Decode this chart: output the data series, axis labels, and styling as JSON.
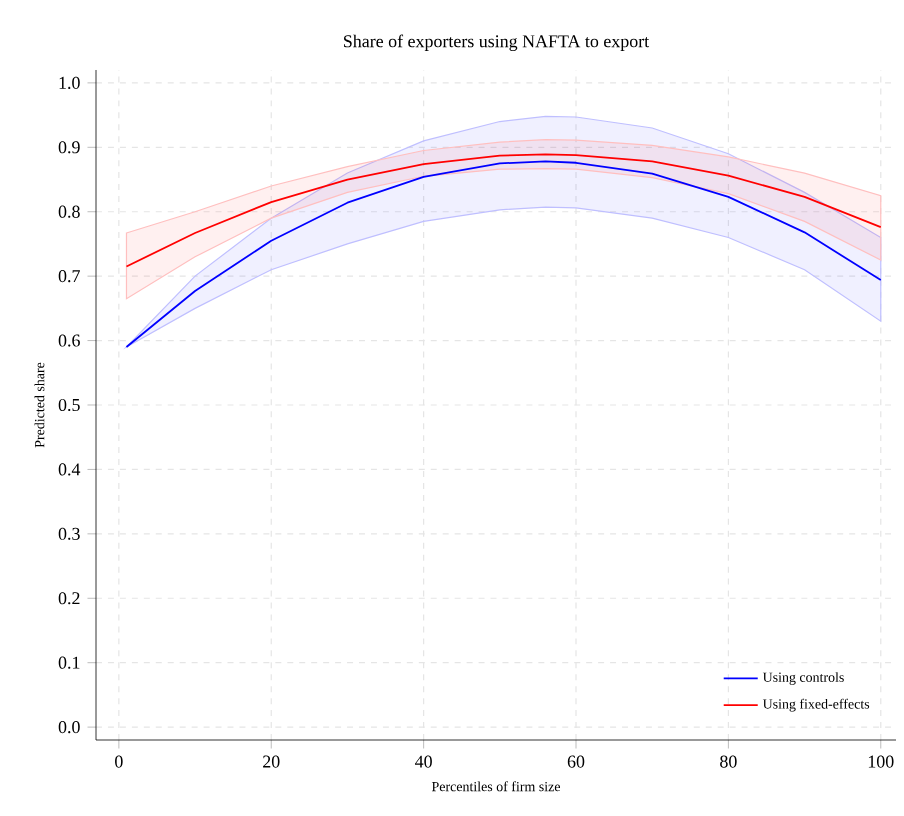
{
  "chart_data": {
    "type": "line",
    "title": "Share of exporters using NAFTA to export",
    "xlabel": "Percentiles of firm size",
    "ylabel": "Predicted share",
    "xlim": [
      -3,
      102
    ],
    "xticks": [
      0,
      20,
      40,
      60,
      80,
      100
    ],
    "ylim": [
      -0.02,
      1.02
    ],
    "yticks": [
      {
        "value": 0,
        "label": "0.0"
      },
      {
        "value": 0.1,
        "label": "0.1"
      },
      {
        "value": 0.2,
        "label": "0.2"
      },
      {
        "value": 0.3,
        "label": "0.3"
      },
      {
        "value": 0.4,
        "label": "0.4"
      },
      {
        "value": 0.5,
        "label": "0.5"
      },
      {
        "value": 0.6,
        "label": "0.6"
      },
      {
        "value": 0.7,
        "label": "0.7"
      },
      {
        "value": 0.8,
        "label": "0.8"
      },
      {
        "value": 0.9,
        "label": "0.9"
      },
      {
        "value": 1.0,
        "label": "1.0"
      }
    ],
    "grid": true,
    "legend": "bottom right",
    "marker": "none",
    "line_style": "solid",
    "x": [
      1,
      10,
      20,
      30,
      40,
      50,
      56,
      60,
      70,
      80,
      90,
      100
    ],
    "series": [
      {
        "name": "Using controls",
        "color": "#0000ff",
        "values": [
          0.59,
          0.677,
          0.755,
          0.814,
          0.854,
          0.875,
          0.878,
          0.876,
          0.859,
          0.823,
          0.768,
          0.694
        ],
        "lower": [
          0.59,
          0.65,
          0.71,
          0.75,
          0.785,
          0.803,
          0.807,
          0.806,
          0.79,
          0.76,
          0.71,
          0.63
        ],
        "upper": [
          0.59,
          0.7,
          0.79,
          0.86,
          0.91,
          0.94,
          0.948,
          0.947,
          0.93,
          0.89,
          0.83,
          0.76
        ]
      },
      {
        "name": "Using fixed-effects",
        "color": "#ff0000",
        "values": [
          0.715,
          0.767,
          0.815,
          0.85,
          0.874,
          0.887,
          0.889,
          0.888,
          0.878,
          0.856,
          0.823,
          0.776
        ],
        "lower": [
          0.665,
          0.73,
          0.79,
          0.83,
          0.855,
          0.866,
          0.867,
          0.866,
          0.853,
          0.828,
          0.785,
          0.725
        ],
        "upper": [
          0.767,
          0.8,
          0.84,
          0.87,
          0.895,
          0.908,
          0.912,
          0.911,
          0.903,
          0.885,
          0.86,
          0.825
        ]
      }
    ]
  }
}
